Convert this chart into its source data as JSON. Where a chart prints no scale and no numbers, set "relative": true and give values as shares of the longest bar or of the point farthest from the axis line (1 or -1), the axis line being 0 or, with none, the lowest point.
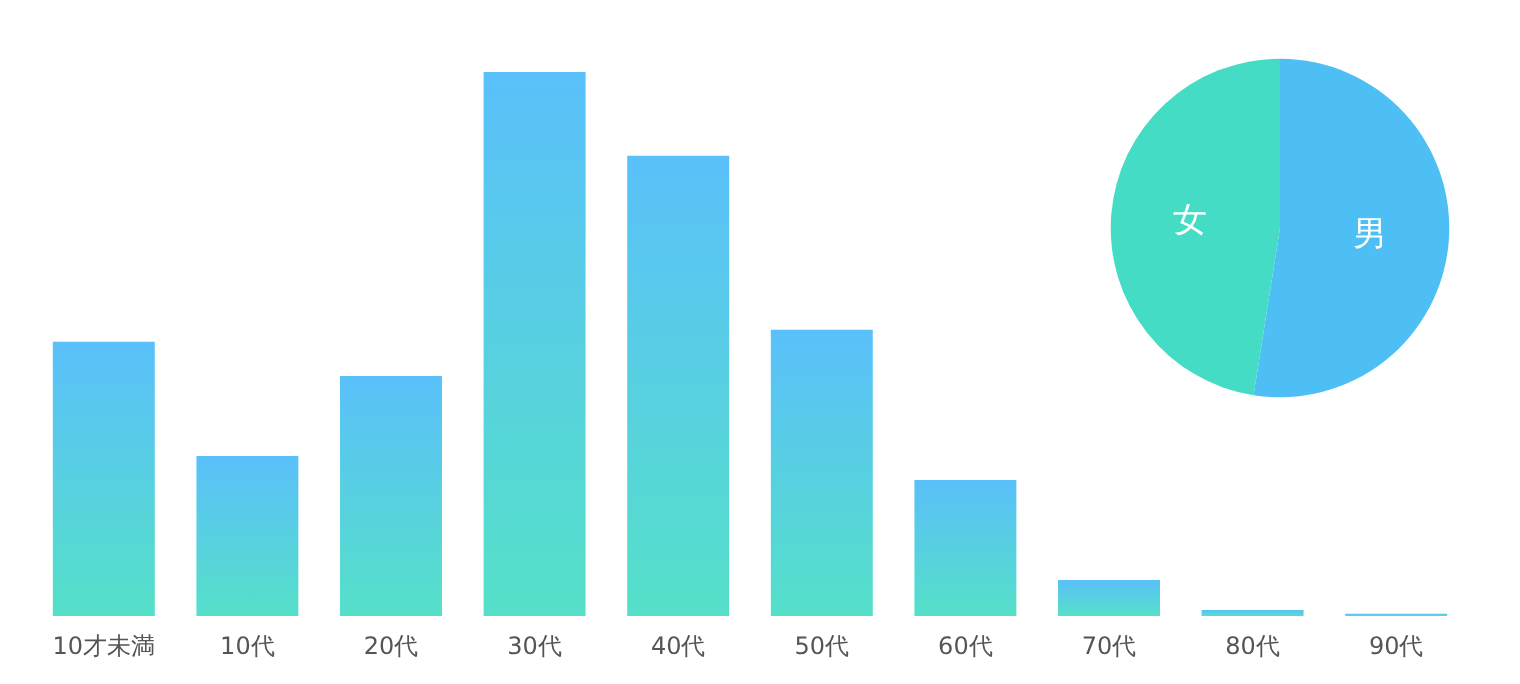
{
  "chart_data": [
    {
      "type": "bar",
      "relative": true,
      "categories": [
        "10才未満",
        "10代",
        "20代",
        "30代",
        "40代",
        "50代",
        "60代",
        "70代",
        "80代",
        "90代"
      ],
      "series": [
        {
          "color": "#5ac0fa",
          "values": [
            0.504,
            0.294,
            0.441,
            1,
            0.846,
            0.526,
            0.25,
            0.066,
            0.011,
            0.004
          ]
        }
      ]
    },
    {
      "type": "pie",
      "categories": [
        "男",
        "女"
      ],
      "values": [
        52.5,
        47.5
      ],
      "colors": [
        "#4dbff5",
        "#44dcc4"
      ]
    }
  ]
}
